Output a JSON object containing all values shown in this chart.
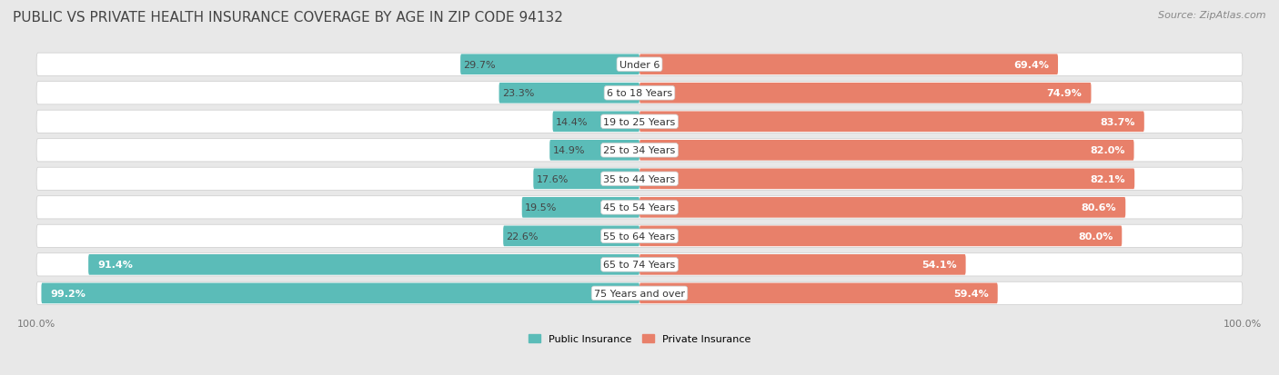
{
  "title": "PUBLIC VS PRIVATE HEALTH INSURANCE COVERAGE BY AGE IN ZIP CODE 94132",
  "source": "Source: ZipAtlas.com",
  "categories": [
    "Under 6",
    "6 to 18 Years",
    "19 to 25 Years",
    "25 to 34 Years",
    "35 to 44 Years",
    "45 to 54 Years",
    "55 to 64 Years",
    "65 to 74 Years",
    "75 Years and over"
  ],
  "public_values": [
    29.7,
    23.3,
    14.4,
    14.9,
    17.6,
    19.5,
    22.6,
    91.4,
    99.2
  ],
  "private_values": [
    69.4,
    74.9,
    83.7,
    82.0,
    82.1,
    80.6,
    80.0,
    54.1,
    59.4
  ],
  "public_color": "#5bbcb8",
  "public_color_light": "#a8d8d8",
  "private_color": "#e8806a",
  "private_color_light": "#f0b8a8",
  "public_label": "Public Insurance",
  "private_label": "Private Insurance",
  "bg_color": "#e8e8e8",
  "row_bg_color": "#f5f5f5",
  "row_border_color": "#cccccc",
  "title_fontsize": 11,
  "source_fontsize": 8,
  "legend_fontsize": 8,
  "bar_label_fontsize": 8,
  "category_fontsize": 8,
  "strong_threshold": 50.0,
  "axis_label_color": "#777777"
}
